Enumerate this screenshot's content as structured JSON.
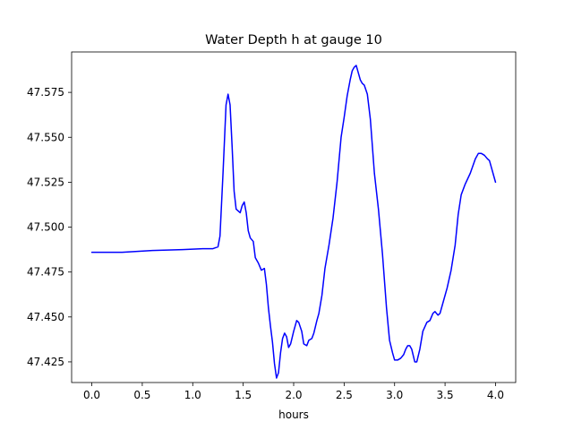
{
  "chart_data": {
    "type": "line",
    "title": "Water Depth h at gauge 10",
    "xlabel": "hours",
    "ylabel": "",
    "xlim": [
      -0.2,
      4.2
    ],
    "ylim": [
      47.4135,
      47.5975
    ],
    "grid": false,
    "legend": "none",
    "x_ticks": [
      {
        "value": 0.0,
        "label": "0.0"
      },
      {
        "value": 0.5,
        "label": "0.5"
      },
      {
        "value": 1.0,
        "label": "1.0"
      },
      {
        "value": 1.5,
        "label": "1.5"
      },
      {
        "value": 2.0,
        "label": "2.0"
      },
      {
        "value": 2.5,
        "label": "2.5"
      },
      {
        "value": 3.0,
        "label": "3.0"
      },
      {
        "value": 3.5,
        "label": "3.5"
      },
      {
        "value": 4.0,
        "label": "4.0"
      }
    ],
    "y_ticks": [
      {
        "value": 47.425,
        "label": "47.425"
      },
      {
        "value": 47.45,
        "label": "47.450"
      },
      {
        "value": 47.475,
        "label": "47.475"
      },
      {
        "value": 47.5,
        "label": "47.500"
      },
      {
        "value": 47.525,
        "label": "47.525"
      },
      {
        "value": 47.55,
        "label": "47.550"
      },
      {
        "value": 47.575,
        "label": "47.575"
      }
    ],
    "series": [
      {
        "color": "#0000ff",
        "x": [
          0.0,
          0.3,
          0.6,
          0.9,
          1.1,
          1.2,
          1.25,
          1.27,
          1.3,
          1.33,
          1.35,
          1.37,
          1.39,
          1.41,
          1.43,
          1.45,
          1.47,
          1.49,
          1.51,
          1.53,
          1.55,
          1.57,
          1.6,
          1.62,
          1.65,
          1.68,
          1.71,
          1.73,
          1.75,
          1.77,
          1.79,
          1.81,
          1.83,
          1.85,
          1.87,
          1.89,
          1.91,
          1.93,
          1.95,
          1.97,
          2.0,
          2.03,
          2.05,
          2.08,
          2.1,
          2.13,
          2.15,
          2.18,
          2.2,
          2.23,
          2.25,
          2.28,
          2.31,
          2.35,
          2.39,
          2.43,
          2.47,
          2.5,
          2.53,
          2.56,
          2.58,
          2.6,
          2.62,
          2.64,
          2.66,
          2.68,
          2.7,
          2.73,
          2.76,
          2.8,
          2.84,
          2.88,
          2.92,
          2.95,
          2.98,
          3.0,
          3.03,
          3.06,
          3.09,
          3.11,
          3.13,
          3.15,
          3.17,
          3.2,
          3.22,
          3.25,
          3.28,
          3.32,
          3.35,
          3.38,
          3.4,
          3.43,
          3.45,
          3.48,
          3.52,
          3.56,
          3.6,
          3.63,
          3.66,
          3.7,
          3.75,
          3.8,
          3.83,
          3.86,
          3.89,
          3.92,
          3.94,
          3.96,
          3.98,
          4.0
        ],
        "y": [
          47.486,
          47.486,
          47.487,
          47.4875,
          47.488,
          47.488,
          47.489,
          47.495,
          47.53,
          47.568,
          47.574,
          47.568,
          47.545,
          47.52,
          47.51,
          47.509,
          47.508,
          47.512,
          47.514,
          47.508,
          47.498,
          47.494,
          47.492,
          47.483,
          47.48,
          47.476,
          47.477,
          47.468,
          47.455,
          47.445,
          47.436,
          47.424,
          47.416,
          47.419,
          47.43,
          47.438,
          47.441,
          47.439,
          47.433,
          47.435,
          47.442,
          47.448,
          47.447,
          47.442,
          47.435,
          47.434,
          47.437,
          47.438,
          47.441,
          47.448,
          47.452,
          47.462,
          47.477,
          47.49,
          47.505,
          47.525,
          47.55,
          47.561,
          47.573,
          47.582,
          47.587,
          47.589,
          47.59,
          47.586,
          47.582,
          47.58,
          47.579,
          47.574,
          47.56,
          47.53,
          47.51,
          47.485,
          47.455,
          47.437,
          47.43,
          47.426,
          47.426,
          47.427,
          47.429,
          47.432,
          47.434,
          47.434,
          47.432,
          47.425,
          47.425,
          47.432,
          47.442,
          47.447,
          47.448,
          47.452,
          47.453,
          47.451,
          47.452,
          47.458,
          47.466,
          47.476,
          47.49,
          47.507,
          47.518,
          47.524,
          47.53,
          47.538,
          47.541,
          47.541,
          47.54,
          47.538,
          47.537,
          47.533,
          47.529,
          47.525
        ]
      }
    ]
  }
}
